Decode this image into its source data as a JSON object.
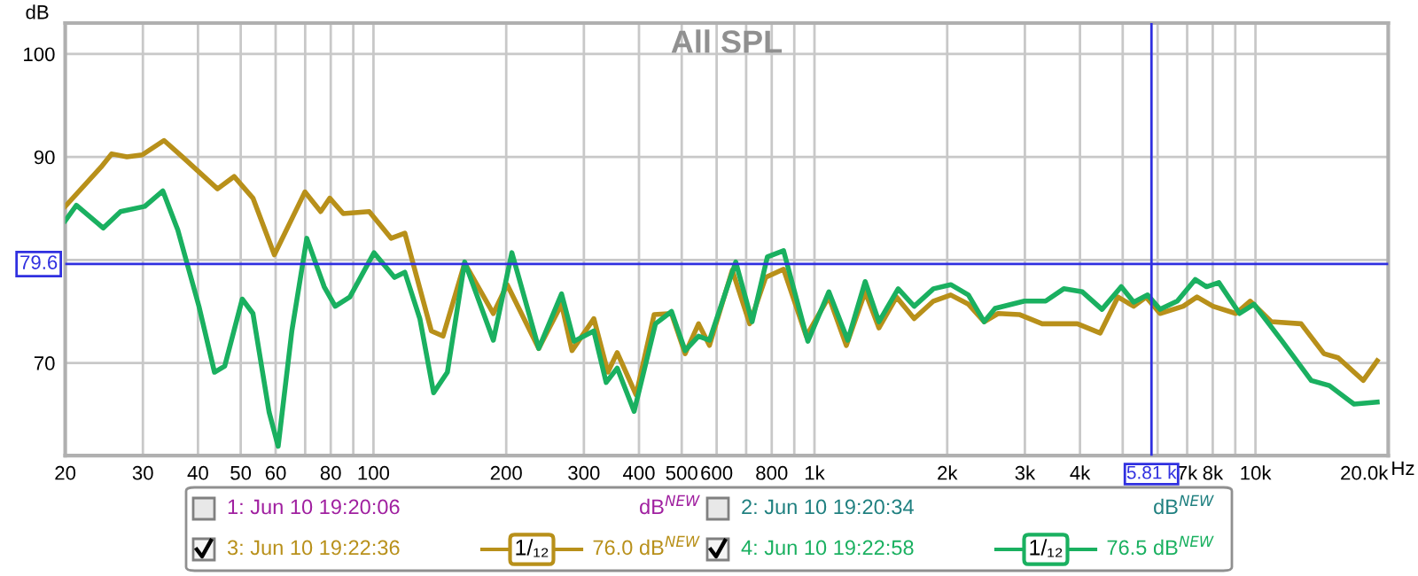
{
  "chart_data": {
    "type": "line",
    "title": "All SPL",
    "xlabel": "Hz",
    "ylabel": "dB",
    "log": "x",
    "grid": true,
    "legend": "bottom",
    "line_style": "solid",
    "xlim": [
      20,
      20000
    ],
    "ylim": [
      61,
      103
    ],
    "xticks": [
      20,
      30,
      40,
      50,
      60,
      {
        "value": 70,
        "label": null
      },
      80,
      {
        "value": 90,
        "label": null
      },
      100,
      200,
      300,
      400,
      500,
      600,
      {
        "value": 700,
        "label": null
      },
      800,
      {
        "value": 900,
        "label": null
      },
      {
        "value": 1000,
        "label": "1k"
      },
      {
        "value": 2000,
        "label": "2k"
      },
      {
        "value": 3000,
        "label": "3k"
      },
      {
        "value": 4000,
        "label": "4k"
      },
      {
        "value": 5000,
        "label": null
      },
      {
        "value": 6000,
        "label": null
      },
      {
        "value": 7000,
        "label": "7k"
      },
      {
        "value": 8000,
        "label": "8k"
      },
      {
        "value": 9000,
        "label": null
      },
      {
        "value": 10000,
        "label": "10k"
      },
      {
        "value": 20000,
        "label": "20.0k"
      }
    ],
    "yticks": [
      70,
      {
        "value": 80,
        "label": null
      },
      90,
      100
    ],
    "ref_lines": [
      {
        "axis": "y",
        "value": 79.6,
        "label": "79.6",
        "color": "#3030e0"
      },
      {
        "axis": "x",
        "value": 5810,
        "label": "5.81 k",
        "color": "#3030e0"
      }
    ],
    "annotations": [
      "1: Jun 10 19:20:06",
      "2: Jun 10 19:20:34",
      "dB$^{NEW}$",
      "dB$^{NEW}$",
      "1/₁₂",
      "76.0 dB$^{NEW}$",
      "1/₁₂",
      "76.5 dB$^{NEW}$"
    ],
    "series": [
      {
        "name": "3: Jun 10 19:22:36",
        "color": "#b8901a",
        "x": [
          20,
          24.1,
          25.5,
          27.6,
          29.9,
          33.5,
          36.9,
          44.3,
          48.3,
          53.3,
          59.6,
          69.9,
          75.9,
          79.6,
          85.4,
          97.8,
          109.7,
          117.8,
          135.3,
          143.8,
          161,
          187,
          201,
          237,
          267,
          282,
          316,
          340,
          357,
          394,
          433,
          474,
          509,
          546,
          578,
          651,
          713,
          775,
          851,
          958,
          1078,
          1181,
          1303,
          1400,
          1535,
          1683,
          1861,
          2037,
          2234,
          2426,
          2609,
          2913,
          3283,
          3947,
          4446,
          4876,
          5296,
          5648,
          6077,
          6854,
          7370,
          8012,
          9027,
          9727,
          10860,
          12690,
          14300,
          15400,
          17550,
          18880
        ],
        "values": [
          85.2,
          89.0,
          90.3,
          90.0,
          90.2,
          91.6,
          90.0,
          86.9,
          88.1,
          86.0,
          80.5,
          86.6,
          84.7,
          86.0,
          84.5,
          84.7,
          82.1,
          82.6,
          73.1,
          72.6,
          79.7,
          74.8,
          77.6,
          71.4,
          75.7,
          71.2,
          74.3,
          69.1,
          71.0,
          66.9,
          74.7,
          74.8,
          70.9,
          73.8,
          71.7,
          79.0,
          73.8,
          78.3,
          79.1,
          72.6,
          76.4,
          71.7,
          76.9,
          73.4,
          76.4,
          74.3,
          76.0,
          76.6,
          75.7,
          74.0,
          74.8,
          74.7,
          73.8,
          73.8,
          72.9,
          76.4,
          75.5,
          76.4,
          74.8,
          75.5,
          76.4,
          75.5,
          74.8,
          76.0,
          74.0,
          73.8,
          70.9,
          70.5,
          68.3,
          70.2
        ]
      },
      {
        "name": "4: Jun 10 19:22:58",
        "color": "#1ab060",
        "x": [
          20,
          21.2,
          24.4,
          26.7,
          30.3,
          33.3,
          36.0,
          40.2,
          43.6,
          46.0,
          50.4,
          53.3,
          58.0,
          60.8,
          65.3,
          70.6,
          77.3,
          81.9,
          88.4,
          100.3,
          111.6,
          117.8,
          127.4,
          136.9,
          147.1,
          161,
          187,
          206,
          237,
          267,
          285,
          316,
          337,
          357,
          390,
          436,
          474,
          509,
          546,
          578,
          663,
          722,
          782,
          851,
          966,
          1078,
          1190,
          1303,
          1400,
          1548,
          1683,
          1861,
          2037,
          2234,
          2426,
          2568,
          2993,
          3343,
          3675,
          4050,
          4487,
          4962,
          5296,
          5694,
          6077,
          6650,
          7300,
          7745,
          8259,
          9200,
          9920,
          11500,
          13380,
          14710,
          16730,
          18880
        ],
        "values": [
          83.8,
          85.3,
          83.1,
          84.7,
          85.2,
          86.7,
          82.9,
          75.5,
          69.1,
          69.7,
          76.2,
          74.8,
          65.2,
          61.9,
          73.1,
          82.1,
          77.4,
          75.5,
          76.4,
          80.7,
          78.3,
          78.8,
          74.3,
          67.1,
          69.1,
          79.8,
          72.2,
          80.7,
          71.4,
          76.7,
          72.1,
          73.1,
          68.1,
          69.5,
          65.3,
          73.8,
          75.0,
          71.2,
          72.6,
          72.2,
          79.8,
          74.0,
          80.3,
          80.9,
          72.1,
          76.9,
          72.2,
          77.9,
          74.0,
          77.2,
          75.5,
          77.2,
          77.6,
          76.6,
          74.0,
          75.3,
          76.0,
          76.0,
          77.2,
          76.9,
          75.2,
          77.4,
          75.9,
          76.6,
          75.2,
          76.0,
          78.1,
          77.4,
          77.8,
          74.8,
          75.7,
          72.1,
          68.3,
          67.8,
          66.0,
          66.2
        ]
      }
    ]
  }
}
